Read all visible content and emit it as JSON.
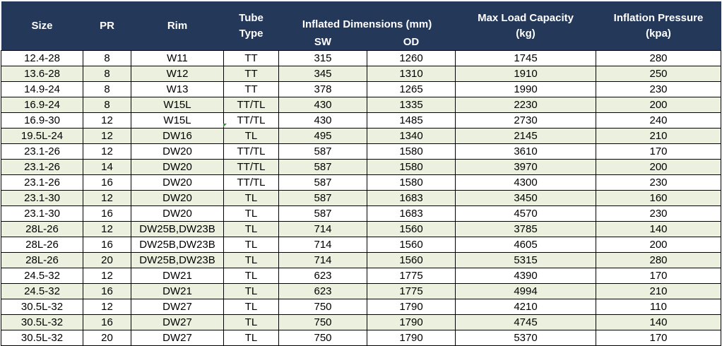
{
  "headers": {
    "size": "Size",
    "pr": "PR",
    "rim": "Rim",
    "tube_type_line1": "Tube",
    "tube_type_line2": "Type",
    "inflated_dimensions": "Inflated Dimensions (mm)",
    "sw": "SW",
    "od": "OD",
    "max_load_line1": "Max Load Capacity",
    "max_load_line2": "(kg)",
    "inflation_line1": "Inflation Pressure",
    "inflation_line2": "(kpa)"
  },
  "colors": {
    "header_bg": "#24385a",
    "stripe_bg": "#ebf1de"
  },
  "rows": [
    {
      "size": "12.4-28",
      "pr": "8",
      "rim": "W11",
      "tube": "TT",
      "sw": "315",
      "od": "1260",
      "load": "1745",
      "pressure": "280"
    },
    {
      "size": "13.6-28",
      "pr": "8",
      "rim": "W12",
      "tube": "TT",
      "sw": "345",
      "od": "1310",
      "load": "1910",
      "pressure": "250"
    },
    {
      "size": "14.9-24",
      "pr": "8",
      "rim": "W13",
      "tube": "TT",
      "sw": "378",
      "od": "1265",
      "load": "1990",
      "pressure": "230"
    },
    {
      "size": "16.9-24",
      "pr": "8",
      "rim": "W15L",
      "tube": "TT/TL",
      "sw": "430",
      "od": "1335",
      "load": "2230",
      "pressure": "200"
    },
    {
      "size": "16.9-30",
      "pr": "12",
      "rim": "W15L",
      "tube": "TT/TL",
      "sw": "430",
      "od": "1485",
      "load": "2730",
      "pressure": "240"
    },
    {
      "size": "19.5L-24",
      "pr": "12",
      "rim": "DW16",
      "tube": "TL",
      "sw": "495",
      "od": "1340",
      "load": "2145",
      "pressure": "210"
    },
    {
      "size": "23.1-26",
      "pr": "12",
      "rim": "DW20",
      "tube": "TT/TL",
      "sw": "587",
      "od": "1580",
      "load": "3610",
      "pressure": "170"
    },
    {
      "size": "23.1-26",
      "pr": "14",
      "rim": "DW20",
      "tube": "TT/TL",
      "sw": "587",
      "od": "1580",
      "load": "3970",
      "pressure": "200"
    },
    {
      "size": "23.1-26",
      "pr": "16",
      "rim": "DW20",
      "tube": "TT/TL",
      "sw": "587",
      "od": "1580",
      "load": "4300",
      "pressure": "230"
    },
    {
      "size": "23.1-30",
      "pr": "12",
      "rim": "DW20",
      "tube": "TL",
      "sw": "587",
      "od": "1683",
      "load": "3450",
      "pressure": "160"
    },
    {
      "size": "23.1-30",
      "pr": "16",
      "rim": "DW20",
      "tube": "TL",
      "sw": "587",
      "od": "1683",
      "load": "4570",
      "pressure": "230"
    },
    {
      "size": "28L-26",
      "pr": "12",
      "rim": "DW25B,DW23B",
      "tube": "TL",
      "sw": "714",
      "od": "1560",
      "load": "3785",
      "pressure": "140"
    },
    {
      "size": "28L-26",
      "pr": "16",
      "rim": "DW25B,DW23B",
      "tube": "TL",
      "sw": "714",
      "od": "1560",
      "load": "4605",
      "pressure": "200"
    },
    {
      "size": "28L-26",
      "pr": "20",
      "rim": "DW25B,DW23B",
      "tube": "TL",
      "sw": "714",
      "od": "1560",
      "load": "5315",
      "pressure": "280"
    },
    {
      "size": "24.5-32",
      "pr": "12",
      "rim": "DW21",
      "tube": "TL",
      "sw": "623",
      "od": "1775",
      "load": "4390",
      "pressure": "170"
    },
    {
      "size": "24.5-32",
      "pr": "16",
      "rim": "DW21",
      "tube": "TL",
      "sw": "623",
      "od": "1775",
      "load": "4994",
      "pressure": "210"
    },
    {
      "size": "30.5L-32",
      "pr": "12",
      "rim": "DW27",
      "tube": "TL",
      "sw": "750",
      "od": "1790",
      "load": "4210",
      "pressure": "110"
    },
    {
      "size": "30.5L-32",
      "pr": "16",
      "rim": "DW27",
      "tube": "TL",
      "sw": "750",
      "od": "1790",
      "load": "4745",
      "pressure": "140"
    },
    {
      "size": "30.5L-32",
      "pr": "20",
      "rim": "DW27",
      "tube": "TL",
      "sw": "750",
      "od": "1790",
      "load": "5370",
      "pressure": "170"
    }
  ]
}
